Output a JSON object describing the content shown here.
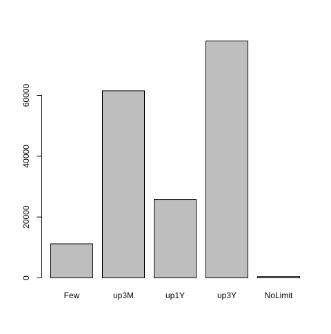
{
  "chart_data": {
    "type": "bar",
    "title": "",
    "xlabel": "",
    "ylabel": "",
    "categories": [
      "Few",
      "up3M",
      "up1Y",
      "up3Y",
      "NoLimit"
    ],
    "values": [
      11200,
      61500,
      25800,
      77900,
      400
    ],
    "ylim": [
      0,
      80000
    ],
    "yticks": [
      0,
      20000,
      40000,
      60000
    ],
    "ytick_labels": [
      "0",
      "20000",
      "40000",
      "60000"
    ],
    "grid": false,
    "legend": "none",
    "bar_color": "#bebebe",
    "bar_border_color": "#000000"
  }
}
